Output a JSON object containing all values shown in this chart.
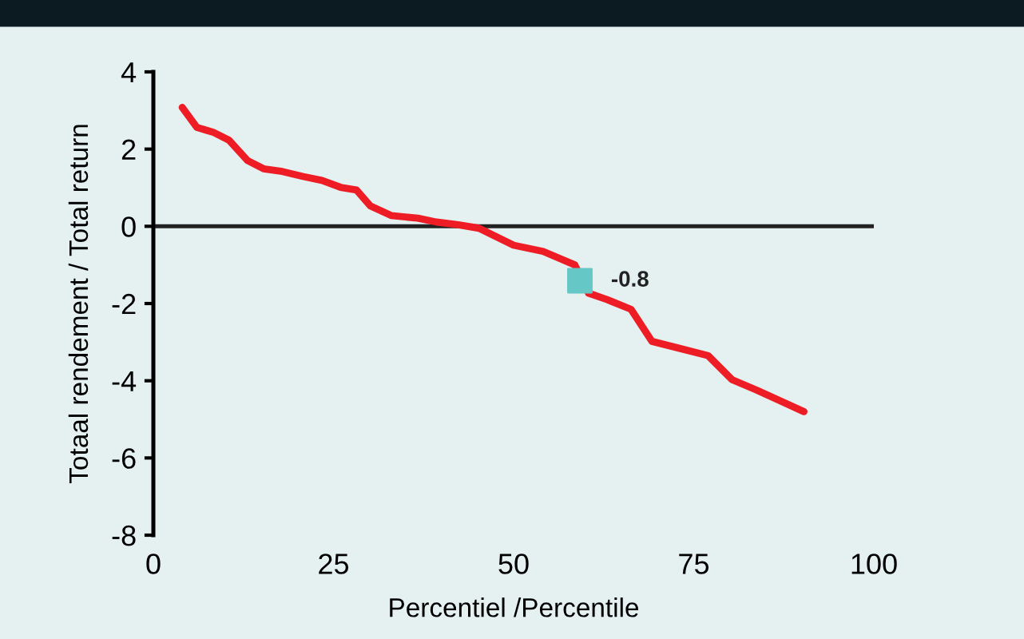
{
  "chart_data": {
    "type": "line",
    "xlabel": "Percentiel /Percentile",
    "ylabel": "Totaal rendement / Total return",
    "xlim": [
      0,
      100
    ],
    "xticks": [
      0,
      25,
      50,
      75,
      100
    ],
    "ylim": [
      -8,
      4
    ],
    "yticks": [
      -8,
      -6,
      -4,
      -2,
      0,
      2,
      4
    ],
    "grid": false,
    "series": [
      {
        "color": "#ee1c25",
        "x": [
          4.0,
          6.05,
          8.27,
          10.5,
          13.1,
          15.3,
          17.9,
          20.8,
          23.4,
          26.0,
          28.2,
          30.1,
          33.0,
          36.7,
          39.3,
          42.3,
          45.2,
          50.0,
          54.1,
          58.5,
          60.4,
          63.0,
          66.3,
          69.2,
          72.6,
          77.0,
          80.3,
          83.7,
          90.3
        ],
        "values": [
          3.08,
          2.56,
          2.44,
          2.23,
          1.7,
          1.49,
          1.42,
          1.29,
          1.19,
          1.01,
          0.94,
          0.53,
          0.28,
          0.21,
          0.11,
          0.04,
          -0.05,
          -0.49,
          -0.65,
          -1.0,
          -1.73,
          -1.9,
          -2.15,
          -2.98,
          -3.14,
          -3.35,
          -3.97,
          -4.24,
          -4.8
        ]
      },
      {
        "type": "scatter",
        "color": "#66c8c6",
        "marker": "square",
        "x": [
          59.2
        ],
        "values": [
          -1.41
        ]
      }
    ],
    "ref_lines": [
      {
        "axis": "y",
        "value": 0,
        "color": "#222222"
      }
    ],
    "annotations": [
      {
        "text": "-0.8",
        "x": 59.2,
        "y": -1.41
      }
    ]
  }
}
